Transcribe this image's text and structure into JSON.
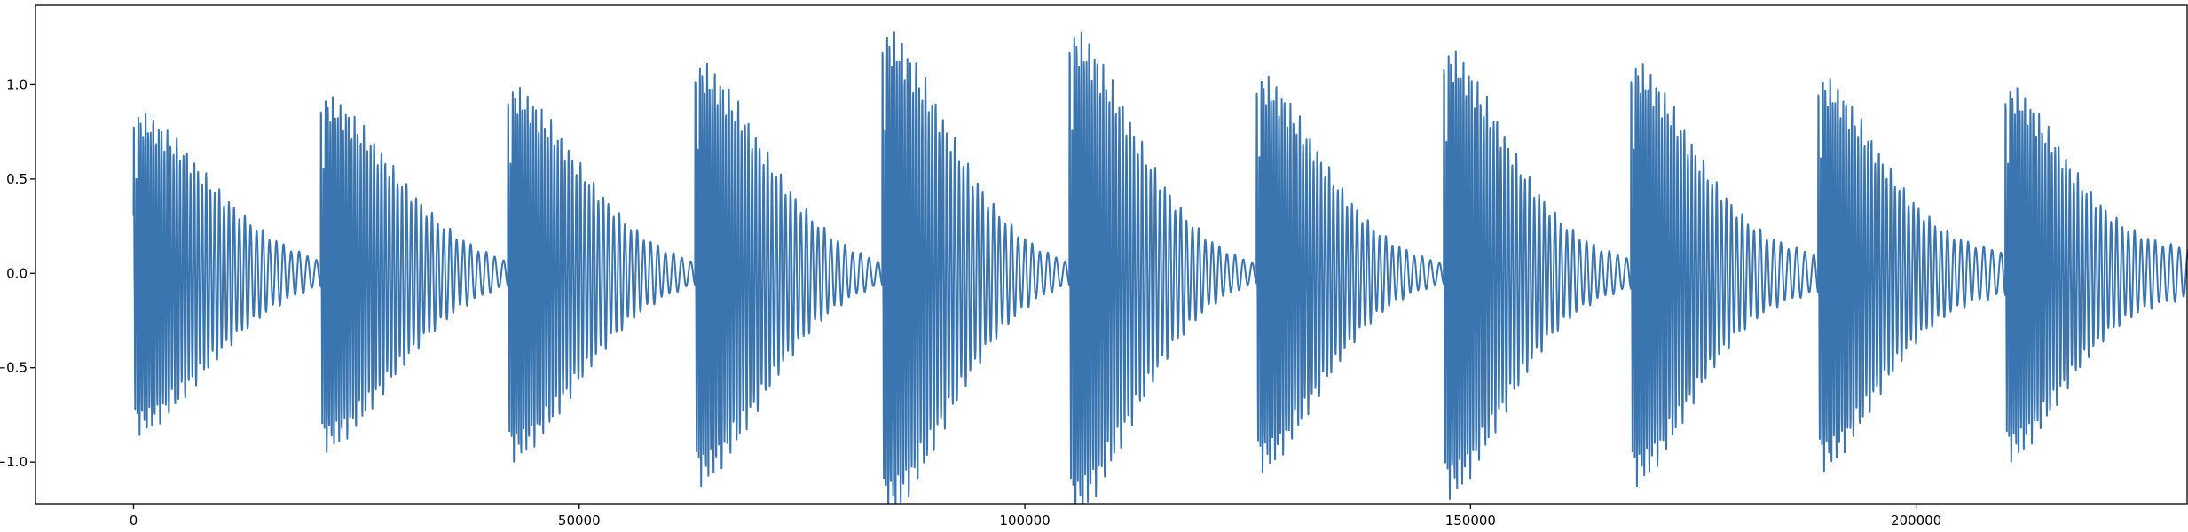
{
  "chart_data": {
    "type": "line",
    "title": "",
    "xlabel": "",
    "ylabel": "",
    "xlim": [
      -11000,
      230500
    ],
    "ylim": [
      -1.22,
      1.42
    ],
    "x_ticks": [
      0,
      50000,
      100000,
      150000,
      200000
    ],
    "x_tick_labels": [
      "0",
      "50000",
      "100000",
      "150000",
      "200000"
    ],
    "y_ticks": [
      -1.0,
      -0.5,
      0.0,
      0.5,
      1.0
    ],
    "y_tick_labels": [
      "−1.0",
      "−0.5",
      "0.0",
      "0.5",
      "1.0"
    ],
    "grid": false,
    "legend": "none",
    "colors": {
      "series": "#3b75af",
      "axes": "#000000",
      "background": "#ffffff"
    },
    "series": [
      {
        "description": "Repeating damped oscillation bursts (chirp-like), 11 segments of ~21000 samples each",
        "segments": [
          {
            "start": 0,
            "end": 21000,
            "peak": 0.86,
            "tail": 0.0
          },
          {
            "start": 21000,
            "end": 42000,
            "peak": 0.95,
            "tail": 0.0
          },
          {
            "start": 42000,
            "end": 63000,
            "peak": 1.0,
            "tail": 0.0
          },
          {
            "start": 63000,
            "end": 84000,
            "peak": 1.13,
            "tail": 0.0
          },
          {
            "start": 84000,
            "end": 105000,
            "peak": 1.3,
            "tail": 0.0
          },
          {
            "start": 105000,
            "end": 126000,
            "peak": 1.3,
            "tail": 0.0
          },
          {
            "start": 126000,
            "end": 147000,
            "peak": 1.06,
            "tail": 0.02
          },
          {
            "start": 147000,
            "end": 168000,
            "peak": 1.2,
            "tail": 0.05
          },
          {
            "start": 168000,
            "end": 189000,
            "peak": 1.13,
            "tail": 0.08
          },
          {
            "start": 189000,
            "end": 210000,
            "peak": 1.05,
            "tail": 0.1
          },
          {
            "start": 210000,
            "end": 231000,
            "peak": 1.0,
            "tail": 0.12
          }
        ]
      }
    ]
  }
}
